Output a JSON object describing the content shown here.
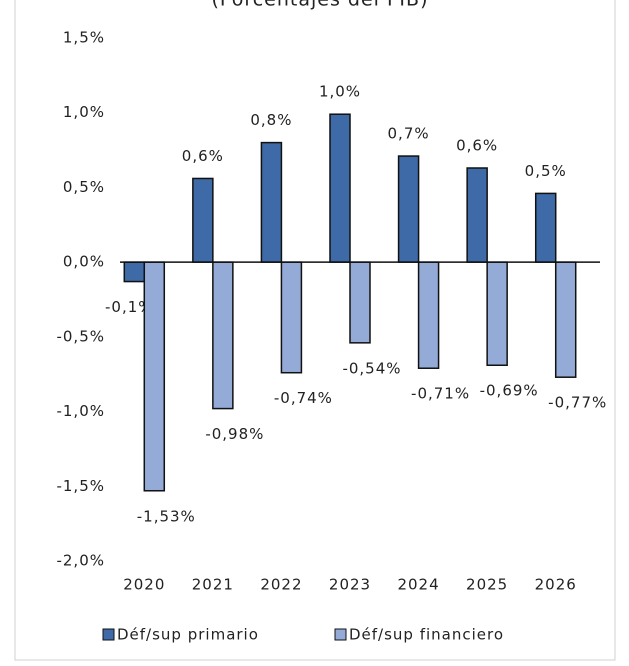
{
  "chart_data": {
    "type": "bar",
    "subtitle": "(Porcentajes del PIB)",
    "categories": [
      "2020",
      "2021",
      "2022",
      "2023",
      "2024",
      "2025",
      "2026"
    ],
    "series": [
      {
        "name": "Déf/sup primario",
        "color": "#3e6ba8",
        "values": [
          -0.13,
          0.56,
          0.8,
          0.99,
          0.71,
          0.63,
          0.46
        ],
        "value_labels": [
          "-0,1%",
          "0,6%",
          "0,8%",
          "1,0%",
          "0,7%",
          "0,6%",
          "0,5%"
        ]
      },
      {
        "name": "Déf/sup financiero",
        "color": "#94aad7",
        "values": [
          -1.53,
          -0.98,
          -0.74,
          -0.54,
          -0.71,
          -0.69,
          -0.77
        ],
        "value_labels": [
          "-1,53%",
          "-0,98%",
          "-0,74%",
          "-0,54%",
          "-0,71%",
          "-0,69%",
          "-0,77%"
        ]
      }
    ],
    "ylim": [
      -2.0,
      1.5
    ],
    "yticks": [
      {
        "value": -2.0,
        "label": "-2,0%"
      },
      {
        "value": -1.5,
        "label": "-1,5%"
      },
      {
        "value": -1.0,
        "label": "-1,0%"
      },
      {
        "value": -0.5,
        "label": "-0,5%"
      },
      {
        "value": 0,
        "label": "0,0%"
      },
      {
        "value": 0.5,
        "label": "0,5%"
      },
      {
        "value": 1.0,
        "label": "1,0%"
      },
      {
        "value": 1.5,
        "label": "1,5%"
      }
    ],
    "legend": "bottom"
  }
}
